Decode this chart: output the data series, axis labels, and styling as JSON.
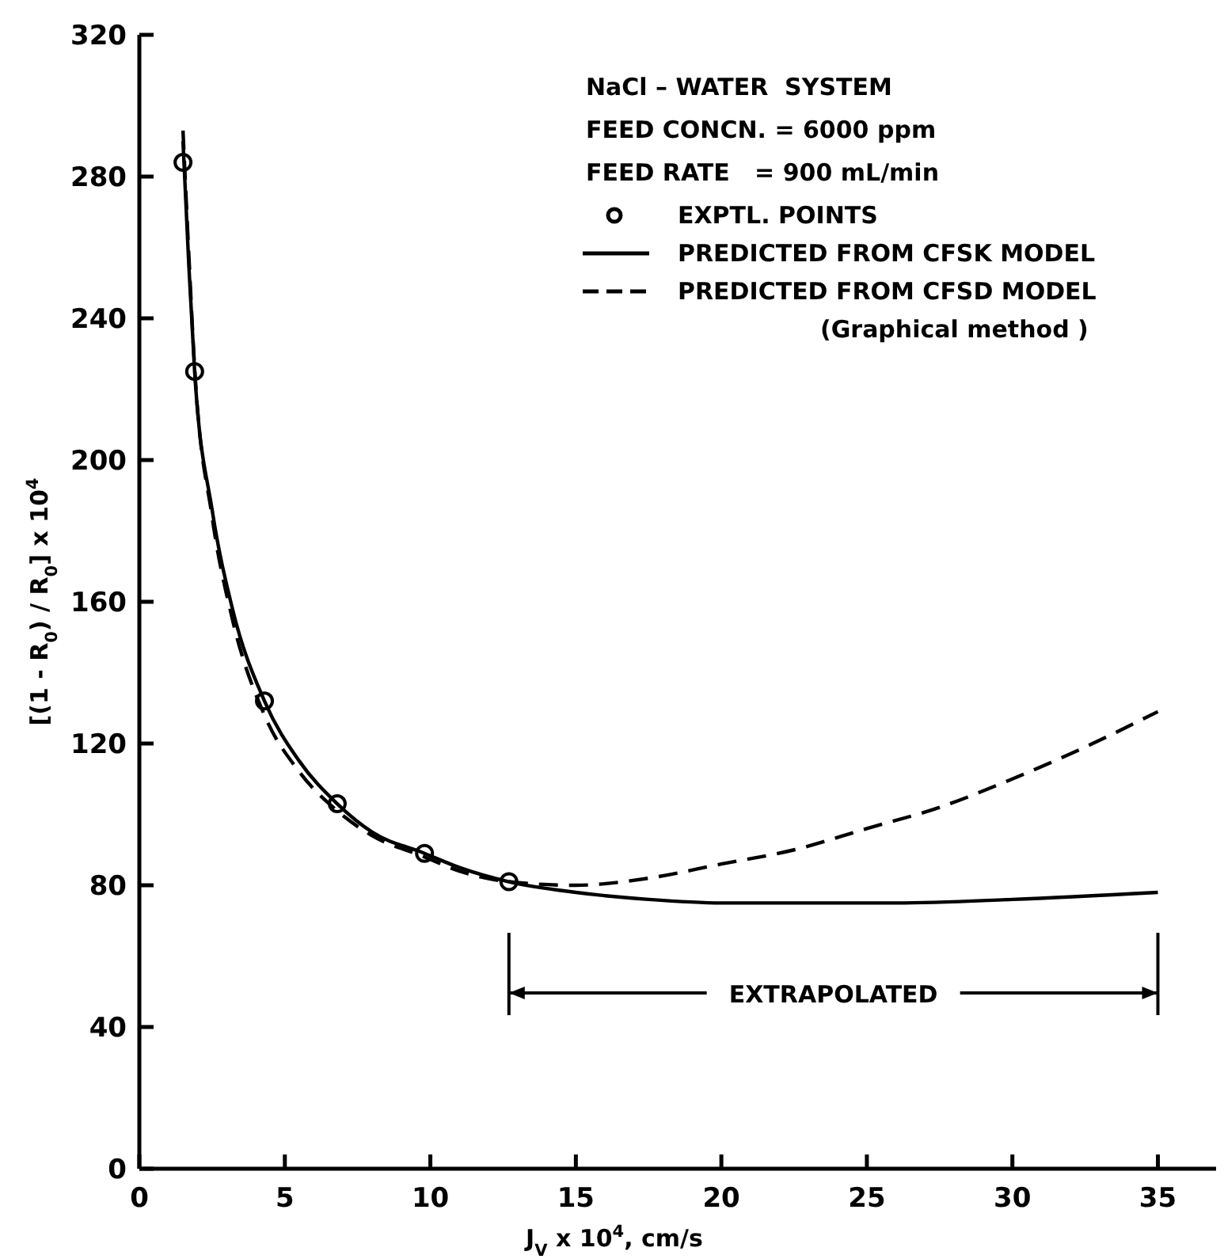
{
  "chart_data": {
    "type": "line",
    "xlabel": "J$_{V}$ x 10$^{4}$, cm/s",
    "ylabel": "[(1 - R$_{0}$) / R$_{0}$] x 10$^{4}$",
    "xlim": [
      0,
      37
    ],
    "ylim": [
      0,
      320
    ],
    "xticks": [
      0,
      5,
      10,
      15,
      20,
      25,
      30,
      35
    ],
    "yticks": [
      0,
      40,
      80,
      120,
      160,
      200,
      240,
      280,
      320
    ],
    "grid": false,
    "legend": "top right",
    "series": [
      {
        "name": "EXPTL. POINTS",
        "type": "scatter",
        "color": "#000000",
        "marker": "circle",
        "x": [
          1.5,
          1.9,
          4.3,
          6.8,
          9.8,
          12.7
        ],
        "values": [
          284,
          225,
          132,
          103,
          89,
          81
        ]
      },
      {
        "name": "PREDICTED FROM CFSK MODEL",
        "color": "#000000",
        "line_style": "solid",
        "x": [
          1.5,
          1.7,
          1.9,
          2.5,
          3.2,
          4.3,
          5.5,
          6.8,
          8,
          9.8,
          11,
          12.7,
          15,
          17.5,
          20,
          23,
          26,
          30,
          35
        ],
        "values": [
          290,
          255,
          225,
          186,
          158,
          132,
          115,
          103,
          95,
          89,
          85,
          81,
          78,
          76,
          75,
          75,
          75,
          76,
          78
        ]
      },
      {
        "name": "PREDICTED FROM CFSD MODEL\n(Graphical method )",
        "color": "#000000",
        "line_style": "dashed",
        "x": [
          1.5,
          1.7,
          1.9,
          2.5,
          3.2,
          4.3,
          5.5,
          6.8,
          8,
          9.8,
          11,
          12.7,
          15,
          17.5,
          20,
          22.5,
          25,
          27.5,
          30,
          32.5,
          35
        ],
        "values": [
          293,
          258,
          226,
          184,
          155,
          128,
          112,
          101,
          94,
          88,
          84,
          81,
          80,
          82,
          86,
          90,
          96,
          102,
          110,
          119,
          129
        ]
      }
    ],
    "annotations": [
      "NaCl – WATER  SYSTEM",
      "FEED CONCN. = 6000 ppm",
      "FEED RATE   = 900 mL/min",
      "EXTRAPOLATED"
    ]
  }
}
